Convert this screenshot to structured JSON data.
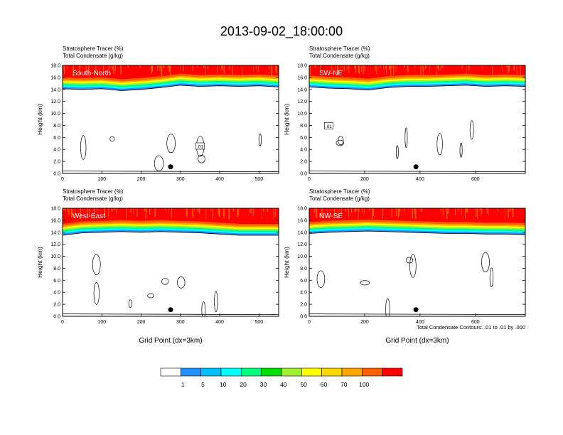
{
  "figure": {
    "title": "2013-09-02_18:00:00",
    "contour_note": "Total Condensate Contours: .01 to .01 by .000"
  },
  "colorbar": {
    "levels": [
      "1",
      "5",
      "10",
      "20",
      "30",
      "40",
      "50",
      "60",
      "70",
      "100"
    ],
    "colors": [
      "#ffffff",
      "#1e90ff",
      "#00bfff",
      "#00ffff",
      "#00ff7f",
      "#00e000",
      "#a0f030",
      "#ffff00",
      "#ffd700",
      "#ffa500",
      "#ff5f00",
      "#ff0000"
    ]
  },
  "chart_data": [
    {
      "type": "cross-section",
      "panel_label": "South-North",
      "title_line1": "Stratosphere Tracer   (%)",
      "title_line2": "Total Condensate   (g/kg)",
      "xlabel": "",
      "ylabel": "Height (km)",
      "xlim": [
        0,
        550
      ],
      "ylim": [
        0,
        18
      ],
      "xticks": [
        "0",
        "100",
        "200",
        "300",
        "400",
        "500"
      ],
      "xtick_values": [
        0,
        100,
        200,
        300,
        400,
        500
      ],
      "yticks": [
        "0.0",
        "2.0",
        "4.0",
        "6.0",
        "8.0",
        "10.0",
        "12.0",
        "14.0",
        "16.0",
        "18.0"
      ],
      "tropopause_km": [
        14.6,
        14.5,
        14.6,
        14.3,
        14.5,
        14.8,
        15.2,
        15.0,
        15.1,
        15.0,
        15.1,
        14.9
      ],
      "marker_x": 275,
      "contour_label": ".01",
      "contour_label_pos": [
        350,
        4.5
      ]
    },
    {
      "type": "cross-section",
      "panel_label": "SW-NE",
      "title_line1": "Stratosphere Tracer   (%)",
      "title_line2": "Total Condensate   (g/kg)",
      "xlabel": "",
      "ylabel": "Height (km)",
      "xlim": [
        0,
        780
      ],
      "ylim": [
        0,
        18
      ],
      "xticks": [
        "0",
        "200",
        "400",
        "600"
      ],
      "xtick_values": [
        0,
        200,
        400,
        600
      ],
      "yticks": [
        "0.0",
        "2.0",
        "4.0",
        "6.0",
        "8.0",
        "10.0",
        "12.0",
        "14.0",
        "16.0",
        "18.0"
      ],
      "tropopause_km": [
        14.9,
        14.7,
        14.6,
        14.4,
        14.8,
        15.0,
        15.0,
        15.1,
        15.2,
        15.0,
        15.1,
        15.0
      ],
      "marker_x": 385,
      "contour_label": ".01",
      "contour_label_pos": [
        70,
        7.9
      ]
    },
    {
      "type": "cross-section",
      "panel_label": "West-East",
      "title_line1": "Stratosphere Tracer   (%)",
      "title_line2": "Total Condensate   (g/kg)",
      "xlabel": "Grid Point (dx=3km)",
      "ylabel": "Height (km)",
      "xlim": [
        0,
        550
      ],
      "ylim": [
        0,
        18
      ],
      "xticks": [
        "0",
        "100",
        "200",
        "300",
        "400",
        "500"
      ],
      "xtick_values": [
        0,
        100,
        200,
        300,
        400,
        500
      ],
      "yticks": [
        "0.0",
        "2.0",
        "4.0",
        "6.0",
        "8.0",
        "10.0",
        "12.0",
        "14.0",
        "16.0",
        "18.0"
      ],
      "tropopause_km": [
        14.0,
        14.4,
        14.5,
        14.6,
        14.5,
        14.6,
        14.5,
        14.4,
        14.2,
        14.0,
        14.0,
        14.0
      ],
      "marker_x": 275,
      "contour_label": "",
      "contour_label_pos": [
        0,
        0
      ]
    },
    {
      "type": "cross-section",
      "panel_label": "NW-SE",
      "title_line1": "Stratosphere Tracer   (%)",
      "title_line2": "Total Condensate   (g/kg)",
      "xlabel": "Grid Point (dx=3km)",
      "ylabel": "Height (km)",
      "xlim": [
        0,
        780
      ],
      "ylim": [
        0,
        18
      ],
      "xticks": [
        "0",
        "200",
        "400",
        "600"
      ],
      "xtick_values": [
        0,
        200,
        400,
        600
      ],
      "yticks": [
        "0.0",
        "2.0",
        "4.0",
        "6.0",
        "8.0",
        "10.0",
        "12.0",
        "14.0",
        "16.0",
        "18.0"
      ],
      "tropopause_km": [
        14.3,
        14.5,
        14.6,
        14.7,
        14.6,
        14.5,
        14.4,
        14.3,
        14.3,
        14.2,
        14.2,
        14.1
      ],
      "marker_x": 385,
      "contour_label": "",
      "contour_label_pos": [
        0,
        0
      ]
    }
  ]
}
